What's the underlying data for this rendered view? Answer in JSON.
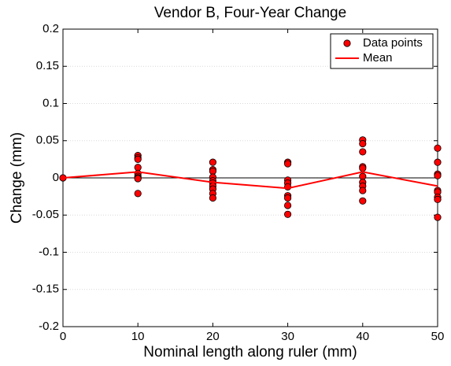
{
  "chart_data": {
    "type": "scatter",
    "title": "Vendor B, Four-Year Change",
    "x_label": "Nominal length along ruler (mm)",
    "y_label": "Change (mm)",
    "series": [
      {
        "name": "Data points",
        "type": "scatter",
        "color": "#ff0000",
        "x": [
          0,
          10,
          10,
          10,
          10,
          10,
          10,
          10,
          10,
          10,
          20,
          20,
          20,
          20,
          20,
          20,
          20,
          20,
          20,
          20,
          30,
          30,
          30,
          30,
          30,
          30,
          30,
          30,
          30,
          40,
          40,
          40,
          40,
          40,
          40,
          40,
          40,
          40,
          40,
          50,
          50,
          50,
          50,
          50,
          50,
          50,
          50,
          50
        ],
        "values": [
          0,
          0.03,
          0.027,
          0.025,
          0.014,
          0.006,
          0.002,
          0,
          -0.001,
          -0.021,
          0.021,
          0.011,
          0.009,
          0.001,
          -0.004,
          -0.007,
          -0.011,
          -0.015,
          -0.021,
          -0.027,
          0.021,
          0.019,
          -0.003,
          -0.007,
          -0.012,
          -0.024,
          -0.027,
          -0.037,
          -0.049,
          0.051,
          0.046,
          0.035,
          0.015,
          0.013,
          0.002,
          -0.006,
          -0.011,
          -0.017,
          -0.031,
          0.04,
          0.021,
          0.005,
          0.003,
          -0.017,
          -0.019,
          -0.026,
          -0.029,
          -0.053
        ]
      },
      {
        "name": "Mean",
        "type": "line",
        "color": "#ff0000",
        "x": [
          0,
          10,
          20,
          30,
          40,
          50
        ],
        "values": [
          0,
          0.008,
          -0.006,
          -0.014,
          0.008,
          -0.011
        ]
      }
    ],
    "xlim": [
      0,
      50
    ],
    "xticks": [
      0,
      10,
      20,
      30,
      40,
      50
    ],
    "ylim": [
      -0.2,
      0.2
    ],
    "yticks": [
      -0.2,
      -0.15,
      -0.1,
      -0.05,
      0,
      0.05,
      0.1,
      0.15,
      0.2
    ],
    "grid": true,
    "legend": "upper right"
  }
}
